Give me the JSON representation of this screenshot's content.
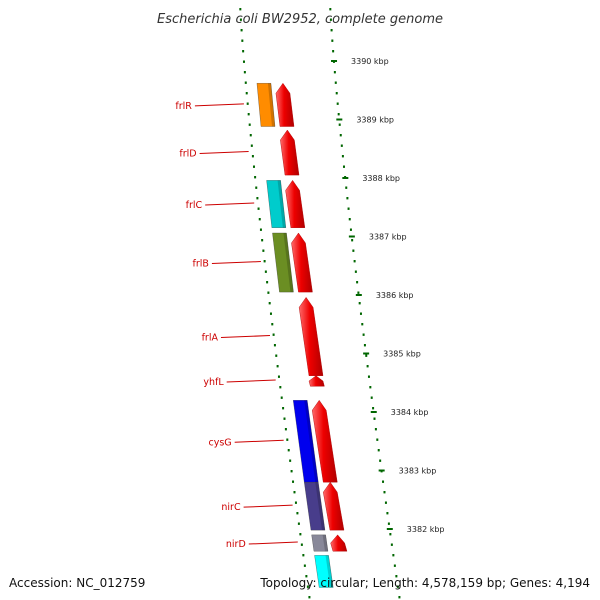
{
  "title": "Escherichia coli BW2952, complete genome",
  "footer": {
    "accession": "Accession: NC_012759",
    "summary": "Topology: circular; Length: 4,578,159 bp; Genes: 4,194"
  },
  "scale": {
    "unit": "kbp",
    "ticks": [
      {
        "kbp": 3390,
        "label": "3390 kbp"
      },
      {
        "kbp": 3389,
        "label": "3389 kbp"
      },
      {
        "kbp": 3388,
        "label": "3388 kbp"
      },
      {
        "kbp": 3387,
        "label": "3387 kbp"
      },
      {
        "kbp": 3386,
        "label": "3386 kbp"
      },
      {
        "kbp": 3385,
        "label": "3385 kbp"
      },
      {
        "kbp": 3384,
        "label": "3384 kbp"
      },
      {
        "kbp": 3383,
        "label": "3383 kbp"
      },
      {
        "kbp": 3382,
        "label": "3382 kbp"
      }
    ]
  },
  "genes": [
    {
      "name": "frlR",
      "start_kbp": 3389.62,
      "end_kbp": 3388.88
    },
    {
      "name": "frlD",
      "start_kbp": 3388.82,
      "end_kbp": 3388.05
    },
    {
      "name": "frlC",
      "start_kbp": 3387.96,
      "end_kbp": 3387.15
    },
    {
      "name": "frlB",
      "start_kbp": 3387.06,
      "end_kbp": 3386.05
    },
    {
      "name": "frlA",
      "start_kbp": 3385.96,
      "end_kbp": 3384.62
    },
    {
      "name": "yhfL",
      "start_kbp": 3384.62,
      "end_kbp": 3384.44
    },
    {
      "name": "cysG",
      "start_kbp": 3384.2,
      "end_kbp": 3382.8
    },
    {
      "name": "nirC",
      "start_kbp": 3382.8,
      "end_kbp": 3381.98
    },
    {
      "name": "nirD",
      "start_kbp": 3381.9,
      "end_kbp": 3381.62
    }
  ],
  "features_outer": [
    {
      "kbp_start": 3389.62,
      "kbp_end": 3388.88,
      "color": "#ff8c00"
    },
    {
      "kbp_start": 3387.96,
      "kbp_end": 3387.15,
      "color": "#00cccc"
    },
    {
      "kbp_start": 3387.06,
      "kbp_end": 3386.05,
      "color": "#6b8e23"
    },
    {
      "kbp_start": 3384.2,
      "kbp_end": 3382.8,
      "color": "#0000ee"
    },
    {
      "kbp_start": 3382.8,
      "kbp_end": 3381.98,
      "color": "#483d8b"
    },
    {
      "kbp_start": 3381.9,
      "kbp_end": 3381.62,
      "color": "#888899"
    },
    {
      "kbp_start": 3381.55,
      "kbp_end": 3381.0,
      "color": "#00ffff"
    }
  ],
  "backbone_feature": {
    "kbp_start": 3391.2,
    "kbp_end": 3390.55,
    "color": "#0000ee"
  },
  "colors": {
    "gene": "#ee0000",
    "gene_label": "#cc0000",
    "backbone": "#8c8c8c",
    "dots": "#006600"
  }
}
